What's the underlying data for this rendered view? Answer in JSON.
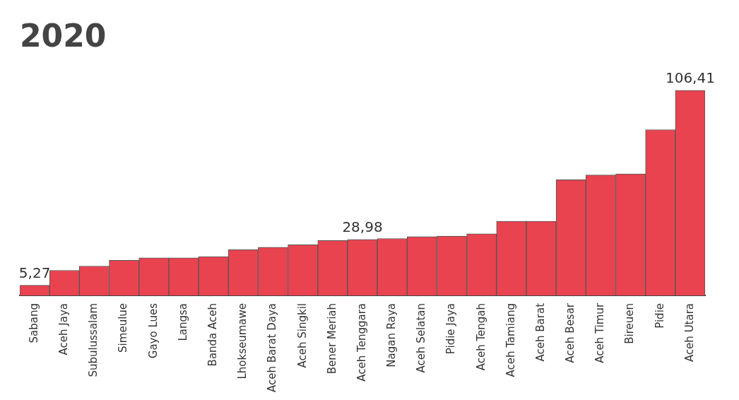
{
  "chart_data": {
    "type": "bar",
    "title": "2020",
    "categories": [
      "Sabang",
      "Aceh Jaya",
      "Subulussalam",
      "Simeulue",
      "Gayo Lues",
      "Langsa",
      "Banda Aceh",
      "Lhokseumawe",
      "Aceh Barat Daya",
      "Aceh Singkil",
      "Bener Meriah",
      "Aceh Tenggara",
      "Nagan Raya",
      "Aceh Selatan",
      "Pidie Jaya",
      "Aceh Tengah",
      "Aceh Tamiang",
      "Aceh Barat",
      "Aceh Besar",
      "Aceh Timur",
      "Bireuen",
      "Pidie",
      "Aceh Utara"
    ],
    "values": [
      5.27,
      13,
      15.2,
      18.2,
      19.5,
      19.5,
      20.1,
      23.7,
      25,
      26.3,
      28.5,
      28.98,
      29.5,
      30.5,
      30.8,
      32,
      38.5,
      38.5,
      60,
      62.5,
      63,
      86,
      106.41
    ],
    "value_labels": [
      "5,27",
      null,
      null,
      null,
      null,
      null,
      null,
      null,
      null,
      null,
      null,
      "28,98",
      null,
      null,
      null,
      null,
      null,
      null,
      null,
      null,
      null,
      null,
      "106,41"
    ],
    "color": "#e8434f",
    "grid": false,
    "legend": false
  }
}
